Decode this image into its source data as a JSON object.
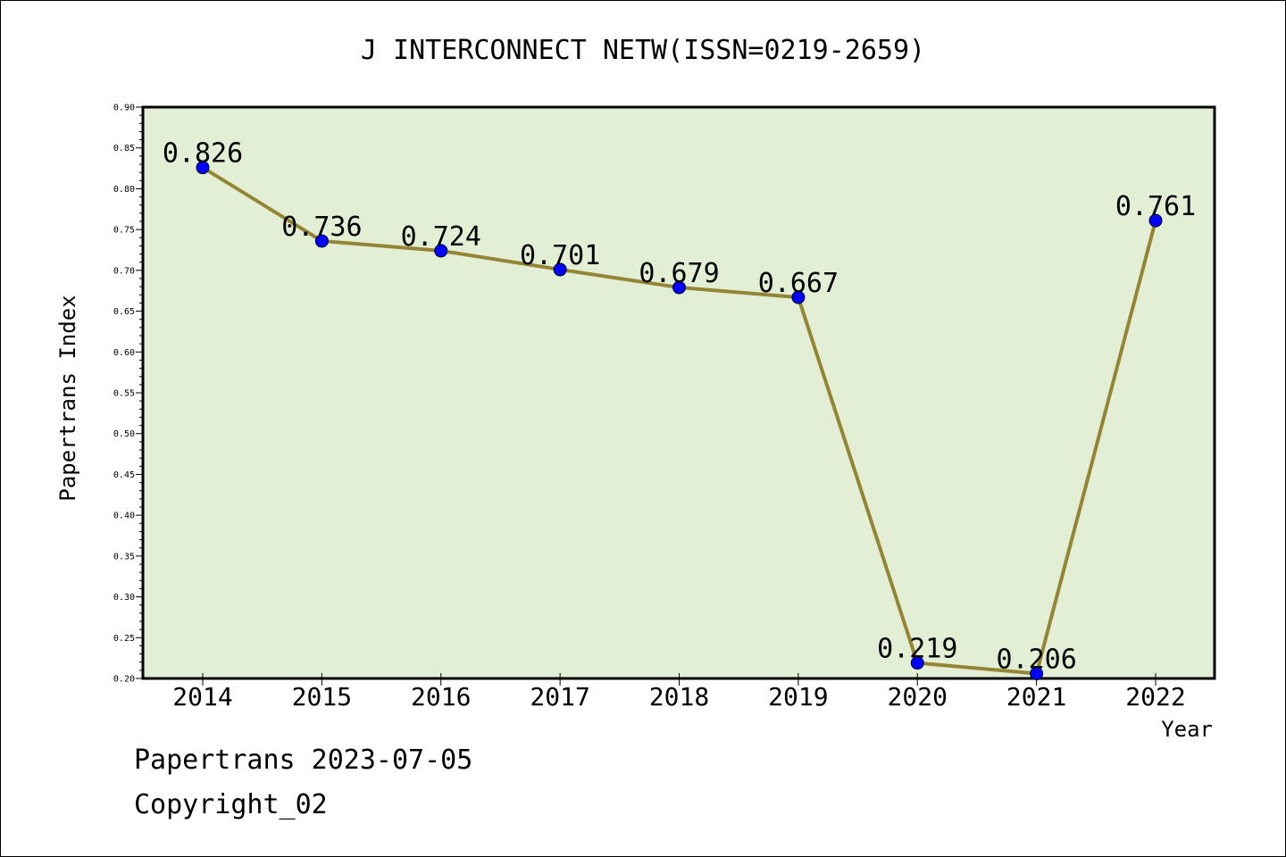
{
  "chart_data": {
    "type": "line",
    "title": "J INTERCONNECT NETW(ISSN=0219-2659)",
    "xlabel": "Year",
    "ylabel": "Papertrans Index",
    "categories": [
      "2014",
      "2015",
      "2016",
      "2017",
      "2018",
      "2019",
      "2020",
      "2021",
      "2022"
    ],
    "values": [
      0.826,
      0.736,
      0.724,
      0.701,
      0.679,
      0.667,
      0.219,
      0.206,
      0.761
    ],
    "data_labels": [
      "0.826",
      "0.736",
      "0.724",
      "0.701",
      "0.679",
      "0.667",
      "0.219",
      "0.206",
      "0.761"
    ],
    "ylim": [
      0.2,
      0.9
    ],
    "yticks": [
      "0.20",
      "0.25",
      "0.30",
      "0.35",
      "0.40",
      "0.45",
      "0.50",
      "0.55",
      "0.60",
      "0.65",
      "0.70",
      "0.75",
      "0.80",
      "0.85",
      "0.90"
    ],
    "grid": false,
    "legend": "none",
    "colors": {
      "plot_background": "#e2efd5",
      "line": "#948535",
      "marker": "#0000ff"
    }
  },
  "footer": {
    "line1": "Papertrans 2023-07-05",
    "line2": "Copyright_02"
  }
}
